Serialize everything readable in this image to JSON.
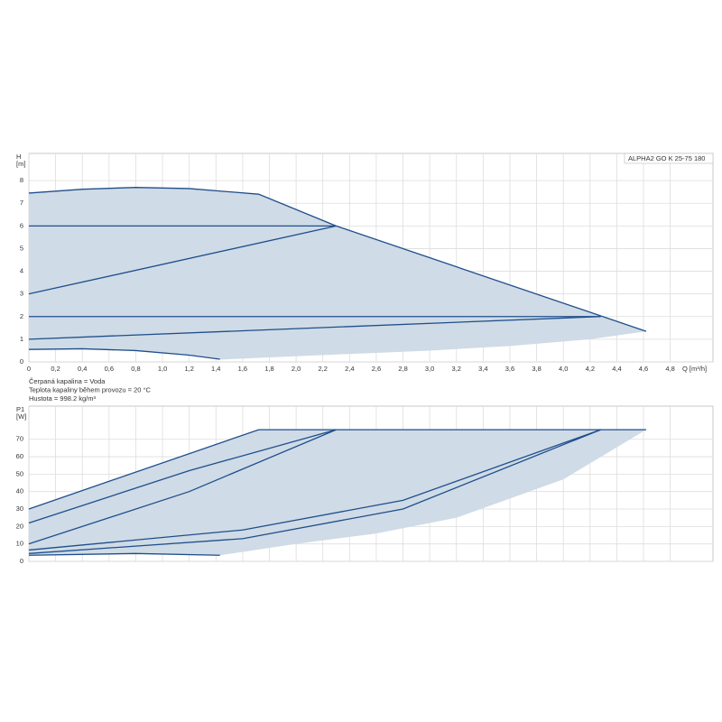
{
  "chart_data": [
    {
      "type": "line",
      "annotation": "ALPHA2 GO K 25-75 180",
      "y_label_lines": [
        "H",
        "[m]"
      ],
      "x_label": "Q [m³/h]",
      "notes": [
        "Čerpaná kapalina = Voda",
        "Teplota kapaliny během provozu = 20 °C",
        "Hustota = 998.2 kg/m³"
      ],
      "xlim": [
        0,
        5.12
      ],
      "ylim": [
        0,
        9.2
      ],
      "xticks": [
        0,
        {
          "value": 0.2,
          "label": "0,2"
        },
        {
          "value": 0.4,
          "label": "0,4"
        },
        {
          "value": 0.6,
          "label": "0,6"
        },
        {
          "value": 0.8,
          "label": "0,8"
        },
        {
          "value": 1.0,
          "label": "1,0"
        },
        {
          "value": 1.2,
          "label": "1,2"
        },
        {
          "value": 1.4,
          "label": "1,4"
        },
        {
          "value": 1.6,
          "label": "1,6"
        },
        {
          "value": 1.8,
          "label": "1,8"
        },
        {
          "value": 2.0,
          "label": "2,0"
        },
        {
          "value": 2.2,
          "label": "2,2"
        },
        {
          "value": 2.4,
          "label": "2,4"
        },
        {
          "value": 2.6,
          "label": "2,6"
        },
        {
          "value": 2.8,
          "label": "2,8"
        },
        {
          "value": 3.0,
          "label": "3,0"
        },
        {
          "value": 3.2,
          "label": "3,2"
        },
        {
          "value": 3.4,
          "label": "3,4"
        },
        {
          "value": 3.6,
          "label": "3,6"
        },
        {
          "value": 3.8,
          "label": "3,8"
        },
        {
          "value": 4.0,
          "label": "4,0"
        },
        {
          "value": 4.2,
          "label": "4,2"
        },
        {
          "value": 4.4,
          "label": "4,4"
        },
        {
          "value": 4.6,
          "label": "4,6"
        },
        {
          "value": 4.8,
          "label": "4,8"
        }
      ],
      "yticks": [
        0,
        1,
        2,
        3,
        4,
        5,
        6,
        7,
        8
      ],
      "grid": true,
      "line_color": "#1f4e8c",
      "area_color": "#cfdbe6",
      "area": {
        "x": [
          0,
          0.4,
          0.8,
          1.2,
          1.72,
          2.3,
          4.62,
          4.2,
          3.6,
          3.0,
          2.4,
          1.8,
          1.43,
          1.2,
          0.8,
          0.4,
          0
        ],
        "y": [
          7.45,
          7.62,
          7.7,
          7.65,
          7.4,
          6.0,
          1.35,
          1.0,
          0.7,
          0.5,
          0.35,
          0.2,
          0.1,
          0.3,
          0.5,
          0.58,
          0.55
        ]
      },
      "lines": [
        {
          "x": [
            0,
            0.4,
            0.8,
            1.2,
            1.72,
            2.3,
            4.62
          ],
          "y": [
            7.45,
            7.62,
            7.7,
            7.65,
            7.4,
            6.0,
            1.35
          ]
        },
        {
          "x": [
            0,
            2.3
          ],
          "y": [
            6,
            6
          ]
        },
        {
          "x": [
            0,
            2.3
          ],
          "y": [
            3,
            6
          ]
        },
        {
          "x": [
            0,
            4.28
          ],
          "y": [
            2,
            2
          ]
        },
        {
          "x": [
            0,
            4.28
          ],
          "y": [
            1,
            2
          ]
        },
        {
          "x": [
            0,
            0.4,
            0.8,
            1.2,
            1.43
          ],
          "y": [
            0.55,
            0.58,
            0.5,
            0.3,
            0.12
          ]
        }
      ]
    },
    {
      "type": "line",
      "y_label_lines": [
        "P1",
        "[W]"
      ],
      "xlim": [
        0,
        5.12
      ],
      "ylim": [
        0,
        89
      ],
      "xticks": [
        0,
        0.2,
        0.4,
        0.6,
        0.8,
        1.0,
        1.2,
        1.4,
        1.6,
        1.8,
        2.0,
        2.2,
        2.4,
        2.6,
        2.8,
        3.0,
        3.2,
        3.4,
        3.6,
        3.8,
        4.0,
        4.2,
        4.4,
        4.6,
        4.8
      ],
      "yticks": [
        0,
        10,
        20,
        30,
        40,
        50,
        60,
        70
      ],
      "grid": true,
      "line_color": "#1f4e8c",
      "area_color": "#cfdbe6",
      "area": {
        "x": [
          0,
          1.72,
          4.62,
          4.0,
          3.2,
          2.6,
          2.0,
          1.43,
          0.8,
          0
        ],
        "y": [
          30,
          75.5,
          75.5,
          47,
          25,
          16,
          10,
          3.5,
          4.5,
          3.5
        ]
      },
      "lines": [
        {
          "x": [
            0,
            1.72,
            4.62
          ],
          "y": [
            30,
            75.5,
            75.5
          ]
        },
        {
          "x": [
            0,
            1.2,
            2.3
          ],
          "y": [
            22,
            52,
            75.5
          ]
        },
        {
          "x": [
            0,
            1.2,
            2.3
          ],
          "y": [
            10,
            40,
            75.5
          ]
        },
        {
          "x": [
            0,
            1.6,
            2.8,
            4.28
          ],
          "y": [
            6.5,
            18,
            35,
            75.5
          ]
        },
        {
          "x": [
            0,
            1.6,
            2.8,
            4.28
          ],
          "y": [
            4.5,
            13,
            30,
            75.5
          ]
        },
        {
          "x": [
            0,
            0.8,
            1.43
          ],
          "y": [
            3.5,
            4.5,
            3.5
          ]
        }
      ]
    }
  ]
}
